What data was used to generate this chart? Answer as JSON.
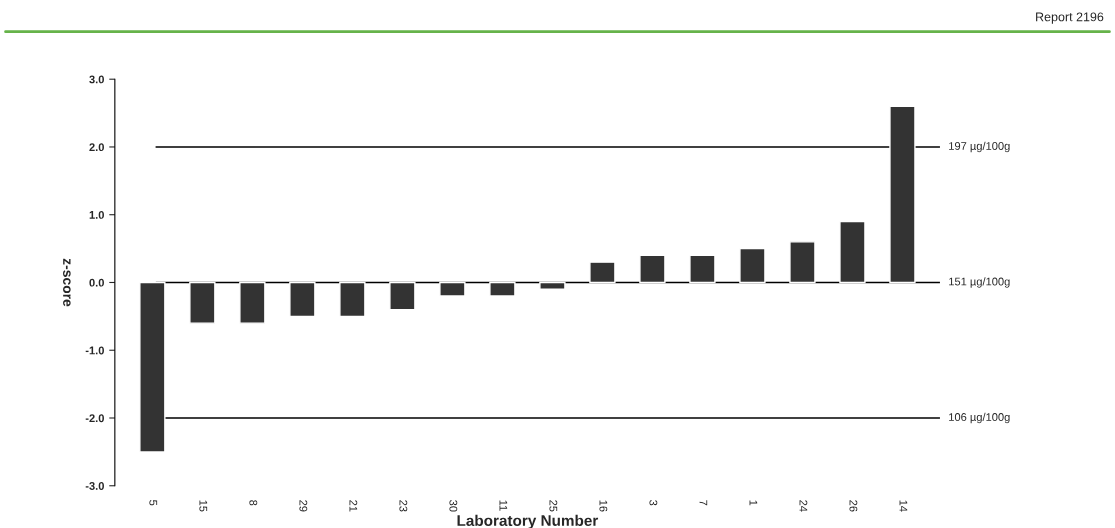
{
  "chart_data": {
    "type": "bar",
    "subtitle": "Report 2196",
    "xlabel": "Laboratory Number",
    "ylabel": "z-score",
    "categories": [
      "5",
      "15",
      "8",
      "29",
      "21",
      "23",
      "30",
      "11",
      "25",
      "16",
      "3",
      "7",
      "1",
      "24",
      "26",
      "14"
    ],
    "values": [
      -2.5,
      -0.6,
      -0.6,
      -0.5,
      -0.5,
      -0.4,
      -0.2,
      -0.2,
      -0.1,
      0.3,
      0.4,
      0.4,
      0.5,
      0.6,
      0.9,
      2.6
    ],
    "color": "#333333",
    "ylim": [
      -3,
      3
    ],
    "yticks": [
      {
        "value": -3,
        "label": "-3.0"
      },
      {
        "value": -2,
        "label": "-2.0"
      },
      {
        "value": -1,
        "label": "-1.0"
      },
      {
        "value": 0,
        "label": "0.0"
      },
      {
        "value": 1,
        "label": "1.0"
      },
      {
        "value": 2,
        "label": "2.0"
      },
      {
        "value": 3,
        "label": "3.0"
      }
    ],
    "ref_lines": [
      {
        "axis": "y",
        "value": 2,
        "label": "197 µg/100g",
        "color": "#000000"
      },
      {
        "axis": "y",
        "value": 0,
        "label": "151 µg/100g",
        "color": "#000000"
      },
      {
        "axis": "y",
        "value": -2,
        "label": "106 µg/100g",
        "color": "#000000"
      }
    ],
    "grid": false,
    "legend": false
  }
}
